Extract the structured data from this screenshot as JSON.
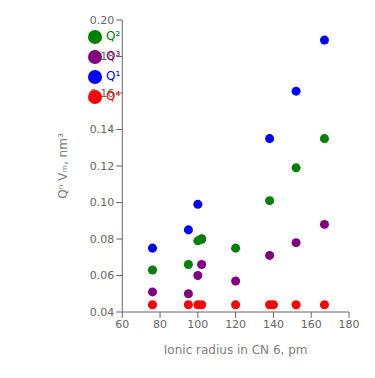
{
  "chart_data": {
    "type": "scatter",
    "xlabel": "Ionic radius in CN 6, pm",
    "ylabel": "Qⁿ Vₘ, nm³",
    "series": [
      {
        "name": "Q¹",
        "color": "#0000ff",
        "x": [
          76,
          95,
          100,
          102,
          138,
          152,
          167
        ],
        "values": [
          0.075,
          0.085,
          0.099,
          0.08,
          0.135,
          0.161,
          0.189
        ]
      },
      {
        "name": "Q²",
        "color": "#008000",
        "x": [
          76,
          95,
          100,
          102,
          120,
          138,
          152,
          167
        ],
        "values": [
          0.063,
          0.066,
          0.079,
          0.08,
          0.075,
          0.101,
          0.119,
          0.135
        ]
      },
      {
        "name": "Q³",
        "color": "#800080",
        "x": [
          76,
          95,
          100,
          102,
          120,
          138,
          152,
          167
        ],
        "values": [
          0.051,
          0.05,
          0.06,
          0.066,
          0.057,
          0.071,
          0.078,
          0.088
        ]
      },
      {
        "name": "Q⁴",
        "color": "#ff0000",
        "x": [
          76,
          95,
          100,
          102,
          120,
          138,
          140,
          152,
          167
        ],
        "values": [
          0.044,
          0.044,
          0.044,
          0.044,
          0.044,
          0.044,
          0.044,
          0.044,
          0.044
        ]
      }
    ],
    "xlim": [
      60,
      180
    ],
    "ylim": [
      0.04,
      0.2
    ],
    "xticks": [
      60,
      80,
      100,
      120,
      140,
      160,
      180
    ],
    "yticks": [
      0.04,
      0.06,
      0.08,
      {
        "value": 0.1,
        "label": "0.10"
      },
      0.12,
      0.14,
      0.16,
      0.18,
      {
        "value": 0.2,
        "label": "0.20"
      }
    ],
    "legend": "upper left",
    "grid": false
  }
}
